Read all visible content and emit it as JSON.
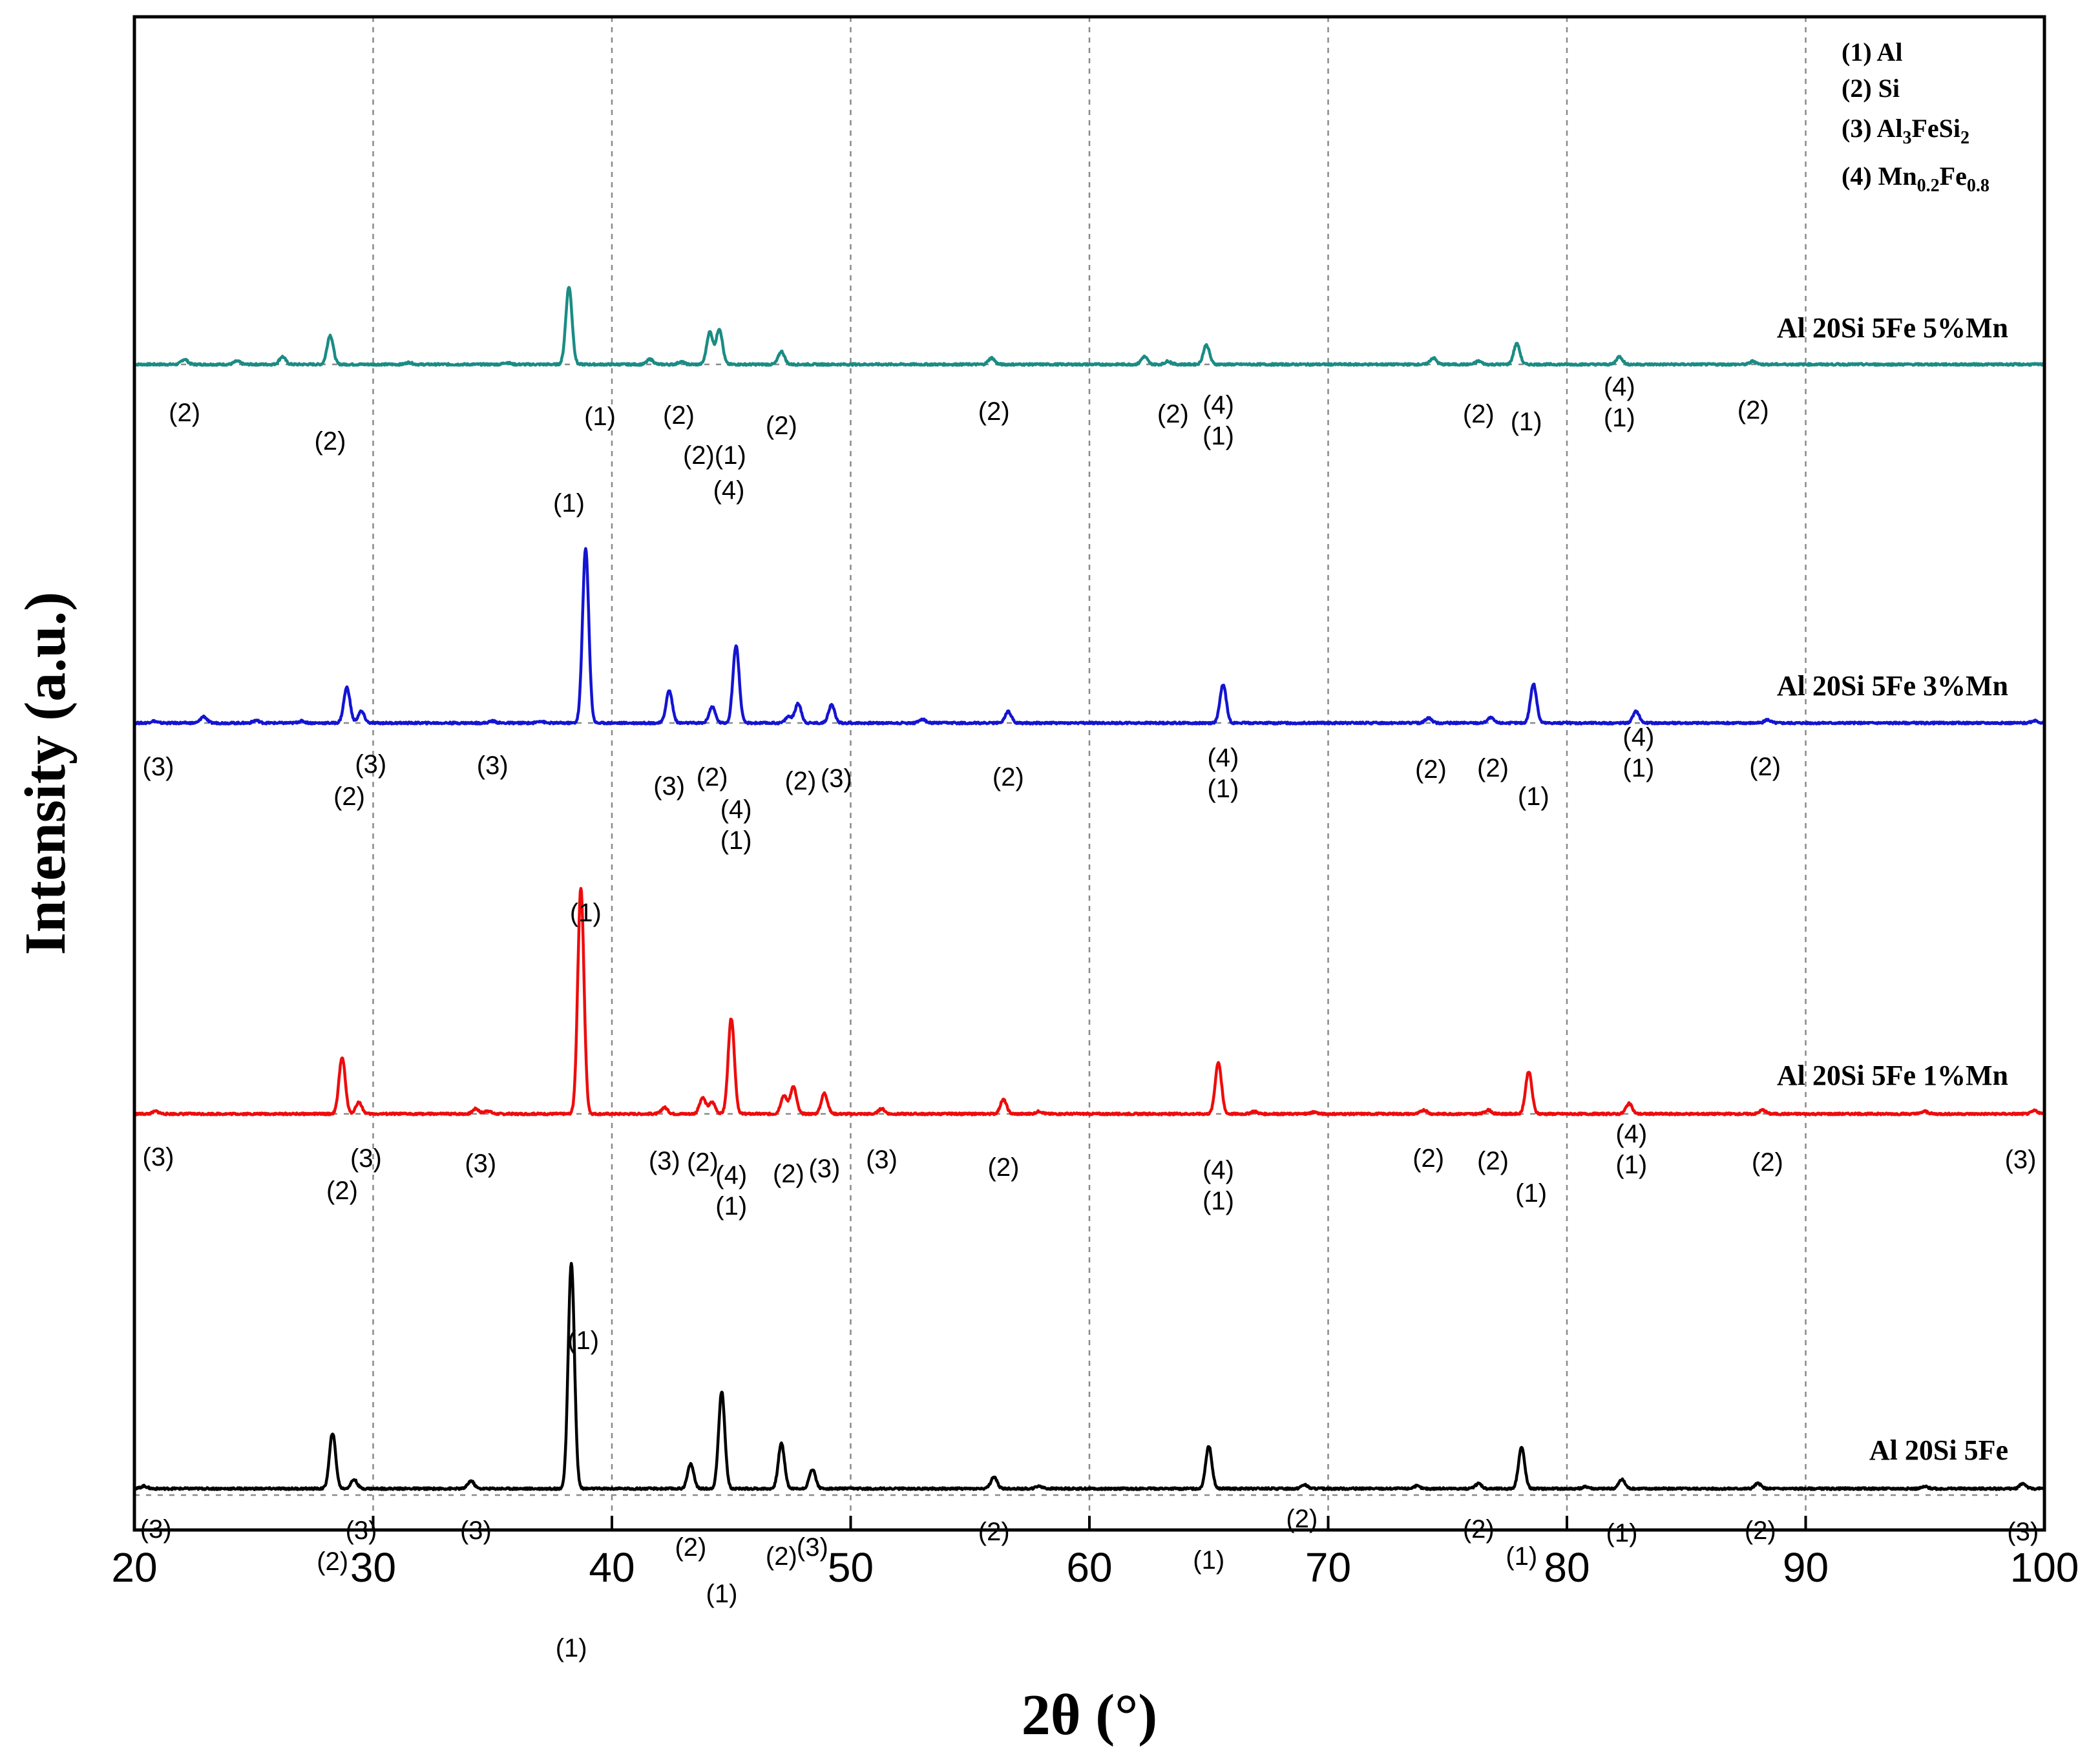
{
  "chart_data": {
    "type": "line",
    "title": "",
    "xlabel": "2θ (°)",
    "ylabel": "Intensity (a.u.)",
    "xlim": [
      20,
      100
    ],
    "xticks": [
      "20",
      "30",
      "40",
      "50",
      "60",
      "70",
      "80",
      "90",
      "100"
    ],
    "grid": true,
    "legend": {
      "placement": "top-right",
      "entries": [
        {
          "index": "(1)",
          "base": "Al",
          "parts": []
        },
        {
          "index": "(2)",
          "base": "Si",
          "parts": []
        },
        {
          "index": "(3)",
          "base": "Al",
          "parts": [
            [
              "3",
              "sub"
            ],
            [
              "FeSi",
              "base"
            ],
            [
              "2",
              "sub"
            ]
          ]
        },
        {
          "index": "(4)",
          "base": "Mn",
          "parts": [
            [
              "0.2",
              "sub"
            ],
            [
              "Fe",
              "base"
            ],
            [
              "0.8",
              "sub"
            ]
          ]
        }
      ]
    },
    "series": [
      {
        "name": "Al 20Si 5Fe 5%Mn",
        "color": "#1a8c84",
        "baseline": 2160,
        "scale": 1.0,
        "peaks": [
          [
            22.1,
            8
          ],
          [
            24.3,
            5
          ],
          [
            26.2,
            12
          ],
          [
            28.2,
            45
          ],
          [
            31.5,
            3
          ],
          [
            35.6,
            3
          ],
          [
            38.2,
            120
          ],
          [
            41.6,
            8
          ],
          [
            42.9,
            4
          ],
          [
            44.1,
            50
          ],
          [
            44.5,
            55
          ],
          [
            47.1,
            20
          ],
          [
            55.9,
            10
          ],
          [
            62.3,
            12
          ],
          [
            63.3,
            5
          ],
          [
            64.9,
            30
          ],
          [
            74.4,
            10
          ],
          [
            76.3,
            5
          ],
          [
            77.9,
            32
          ],
          [
            82.2,
            12
          ],
          [
            87.8,
            5
          ]
        ],
        "labels": [
          {
            "x": 22.1,
            "lines": [
              "(2)"
            ],
            "bottom": 2072
          },
          {
            "x": 28.2,
            "lines": [
              "(2)"
            ],
            "bottom": 2028
          },
          {
            "x": 38.2,
            "lines": [
              "(1)"
            ],
            "bottom": 1932
          },
          {
            "x": 39.5,
            "lines": [
              "(1)"
            ],
            "bottom": 2066
          },
          {
            "x": 42.8,
            "lines": [
              "(2)"
            ],
            "bottom": 2068
          },
          {
            "x": 44.3,
            "lines": [
              "(2)(1)"
            ],
            "bottom": 2006
          },
          {
            "x": 44.9,
            "lines": [
              "(4)"
            ],
            "bottom": 1952
          },
          {
            "x": 47.1,
            "lines": [
              "(2)"
            ],
            "bottom": 2052
          },
          {
            "x": 56.0,
            "lines": [
              "(2)"
            ],
            "bottom": 2074
          },
          {
            "x": 63.5,
            "lines": [
              "(2)"
            ],
            "bottom": 2070
          },
          {
            "x": 65.4,
            "lines": [
              "(4)",
              "(1)"
            ],
            "bottom": 2036
          },
          {
            "x": 76.3,
            "lines": [
              "(2)"
            ],
            "bottom": 2070
          },
          {
            "x": 78.3,
            "lines": [
              "(1)"
            ],
            "bottom": 2058
          },
          {
            "x": 82.2,
            "lines": [
              "(4)",
              "(1)"
            ],
            "bottom": 2064
          },
          {
            "x": 87.8,
            "lines": [
              "(2)"
            ],
            "bottom": 2076
          }
        ]
      },
      {
        "name": "Al 20Si 5Fe 3%Mn",
        "color": "#1414d2",
        "baseline": 1605,
        "scale": 1.0,
        "peaks": [
          [
            20.8,
            3
          ],
          [
            22.9,
            10
          ],
          [
            25.1,
            4
          ],
          [
            27.0,
            3
          ],
          [
            28.9,
            55
          ],
          [
            29.5,
            18
          ],
          [
            35.0,
            3
          ],
          [
            37.0,
            3
          ],
          [
            38.9,
            270
          ],
          [
            42.4,
            50
          ],
          [
            44.2,
            25
          ],
          [
            45.2,
            120
          ],
          [
            47.4,
            10
          ],
          [
            47.8,
            30
          ],
          [
            49.2,
            28
          ],
          [
            53.0,
            6
          ],
          [
            56.6,
            18
          ],
          [
            65.6,
            60
          ],
          [
            74.2,
            8
          ],
          [
            76.8,
            8
          ],
          [
            78.6,
            60
          ],
          [
            82.9,
            18
          ],
          [
            88.4,
            5
          ],
          [
            99.6,
            4
          ]
        ],
        "labels": [
          {
            "x": 21.0,
            "lines": [
              "(3)"
            ],
            "bottom": 1524
          },
          {
            "x": 29.0,
            "lines": [
              "(2)"
            ],
            "bottom": 1478
          },
          {
            "x": 29.9,
            "lines": [
              "(3)"
            ],
            "bottom": 1528
          },
          {
            "x": 35.0,
            "lines": [
              "(3)"
            ],
            "bottom": 1526
          },
          {
            "x": 38.9,
            "lines": [
              "(1)"
            ],
            "bottom": 1298
          },
          {
            "x": 42.4,
            "lines": [
              "(3)"
            ],
            "bottom": 1494
          },
          {
            "x": 44.2,
            "lines": [
              "(2)"
            ],
            "bottom": 1508
          },
          {
            "x": 45.2,
            "lines": [
              "(4)",
              "(1)"
            ],
            "bottom": 1410
          },
          {
            "x": 47.9,
            "lines": [
              "(2)"
            ],
            "bottom": 1502
          },
          {
            "x": 49.4,
            "lines": [
              "(3)"
            ],
            "bottom": 1506
          },
          {
            "x": 56.6,
            "lines": [
              "(2)"
            ],
            "bottom": 1508
          },
          {
            "x": 65.6,
            "lines": [
              "(4)",
              "(1)"
            ],
            "bottom": 1490
          },
          {
            "x": 74.3,
            "lines": [
              "(2)"
            ],
            "bottom": 1520
          },
          {
            "x": 76.9,
            "lines": [
              "(2)"
            ],
            "bottom": 1522
          },
          {
            "x": 78.6,
            "lines": [
              "(1)"
            ],
            "bottom": 1478
          },
          {
            "x": 83.0,
            "lines": [
              "(4)",
              "(1)"
            ],
            "bottom": 1522
          },
          {
            "x": 88.3,
            "lines": [
              "(2)"
            ],
            "bottom": 1524
          }
        ]
      },
      {
        "name": "Al 20Si 5Fe 1%Mn",
        "color": "#ee0c0c",
        "baseline": 1000,
        "scale": 1.0,
        "peaks": [
          [
            20.9,
            4
          ],
          [
            28.7,
            88
          ],
          [
            29.4,
            18
          ],
          [
            34.3,
            8
          ],
          [
            34.8,
            5
          ],
          [
            38.7,
            350
          ],
          [
            42.2,
            10
          ],
          [
            43.8,
            25
          ],
          [
            44.2,
            18
          ],
          [
            45.0,
            148
          ],
          [
            47.2,
            28
          ],
          [
            47.6,
            42
          ],
          [
            48.9,
            32
          ],
          [
            51.3,
            8
          ],
          [
            56.4,
            22
          ],
          [
            57.9,
            4
          ],
          [
            65.4,
            80
          ],
          [
            66.9,
            4
          ],
          [
            69.4,
            3
          ],
          [
            74.0,
            6
          ],
          [
            76.7,
            6
          ],
          [
            78.4,
            66
          ],
          [
            82.6,
            16
          ],
          [
            88.2,
            6
          ],
          [
            95.0,
            4
          ],
          [
            99.6,
            5
          ]
        ],
        "labels": [
          {
            "x": 21.0,
            "lines": [
              "(3)"
            ],
            "bottom": 920
          },
          {
            "x": 28.7,
            "lines": [
              "(2)"
            ],
            "bottom": 868
          },
          {
            "x": 29.7,
            "lines": [
              "(3)"
            ],
            "bottom": 918
          },
          {
            "x": 34.5,
            "lines": [
              "(3)"
            ],
            "bottom": 910
          },
          {
            "x": 38.8,
            "lines": [
              "(1)"
            ],
            "bottom": 636
          },
          {
            "x": 42.2,
            "lines": [
              "(3)"
            ],
            "bottom": 914
          },
          {
            "x": 43.8,
            "lines": [
              "(2)"
            ],
            "bottom": 912
          },
          {
            "x": 45.0,
            "lines": [
              "(4)",
              "(1)"
            ],
            "bottom": 844
          },
          {
            "x": 47.4,
            "lines": [
              "(2)"
            ],
            "bottom": 894
          },
          {
            "x": 48.9,
            "lines": [
              "(3)"
            ],
            "bottom": 902
          },
          {
            "x": 51.3,
            "lines": [
              "(3)"
            ],
            "bottom": 916
          },
          {
            "x": 56.4,
            "lines": [
              "(2)"
            ],
            "bottom": 904
          },
          {
            "x": 65.4,
            "lines": [
              "(4)",
              "(1)"
            ],
            "bottom": 852
          },
          {
            "x": 74.2,
            "lines": [
              "(2)"
            ],
            "bottom": 918
          },
          {
            "x": 76.9,
            "lines": [
              "(2)"
            ],
            "bottom": 914
          },
          {
            "x": 78.5,
            "lines": [
              "(1)"
            ],
            "bottom": 864
          },
          {
            "x": 82.7,
            "lines": [
              "(4)",
              "(1)"
            ],
            "bottom": 908
          },
          {
            "x": 88.4,
            "lines": [
              "(2)"
            ],
            "bottom": 912
          },
          {
            "x": 99.0,
            "lines": [
              "(3)"
            ],
            "bottom": 916
          }
        ]
      },
      {
        "name": "Al 20Si 5Fe",
        "color": "#000000",
        "baseline": 420,
        "scale": 1.0,
        "peaks": [
          [
            20.4,
            4
          ],
          [
            28.3,
            86
          ],
          [
            29.2,
            14
          ],
          [
            34.1,
            12
          ],
          [
            38.3,
            350
          ],
          [
            43.3,
            38
          ],
          [
            44.6,
            150
          ],
          [
            47.1,
            70
          ],
          [
            48.4,
            30
          ],
          [
            56.0,
            18
          ],
          [
            57.9,
            4
          ],
          [
            65.0,
            66
          ],
          [
            69.0,
            6
          ],
          [
            73.7,
            4
          ],
          [
            76.3,
            8
          ],
          [
            78.1,
            64
          ],
          [
            80.8,
            3
          ],
          [
            82.3,
            14
          ],
          [
            88.0,
            8
          ],
          [
            95.0,
            3
          ],
          [
            99.1,
            8
          ]
        ],
        "labels": [
          {
            "x": 20.9,
            "lines": [
              "(3)"
            ],
            "bottom": 344
          },
          {
            "x": 28.3,
            "lines": [
              "(2)"
            ],
            "bottom": 294
          },
          {
            "x": 29.5,
            "lines": [
              "(3)"
            ],
            "bottom": 342
          },
          {
            "x": 34.3,
            "lines": [
              "(3)"
            ],
            "bottom": 342
          },
          {
            "x": 38.3,
            "lines": [
              "(1)"
            ],
            "bottom": 160
          },
          {
            "x": 43.3,
            "lines": [
              "(2)"
            ],
            "bottom": 316
          },
          {
            "x": 44.6,
            "lines": [
              "(1)"
            ],
            "bottom": 244
          },
          {
            "x": 47.1,
            "lines": [
              "(2)"
            ],
            "bottom": 302
          },
          {
            "x": 48.4,
            "lines": [
              "(3)"
            ],
            "bottom": 316
          },
          {
            "x": 56.0,
            "lines": [
              "(2)"
            ],
            "bottom": 340
          },
          {
            "x": 65.0,
            "lines": [
              "(1)"
            ],
            "bottom": 296
          },
          {
            "x": 68.9,
            "lines": [
              "(2)"
            ],
            "bottom": 360
          },
          {
            "x": 76.3,
            "lines": [
              "(2)"
            ],
            "bottom": 344
          },
          {
            "x": 78.1,
            "lines": [
              "(1)"
            ],
            "bottom": 302
          },
          {
            "x": 82.3,
            "lines": [
              "(1)"
            ],
            "bottom": 338
          },
          {
            "x": 88.1,
            "lines": [
              "(2)"
            ],
            "bottom": 342
          },
          {
            "x": 99.1,
            "lines": [
              "(3)"
            ],
            "bottom": 340
          }
        ]
      }
    ],
    "separators": [
      2160,
      1605,
      1000,
      410
    ]
  }
}
